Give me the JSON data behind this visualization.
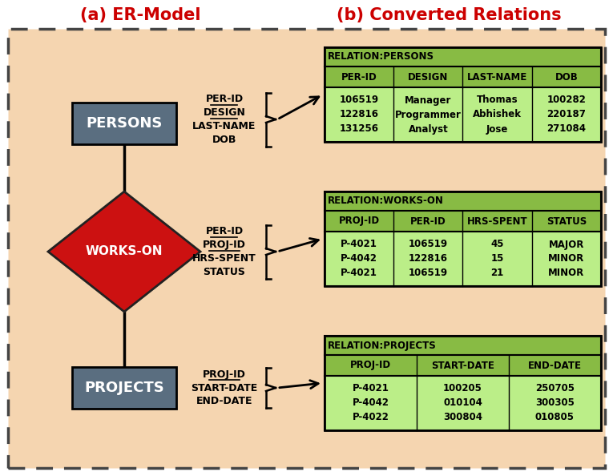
{
  "title_left": "(a) ER-Model",
  "title_right": "(b) Converted Relations",
  "title_color": "#cc0000",
  "bg_color": "#f5d5b0",
  "outer_bg": "#ffffff",
  "entity_color": "#5a6e80",
  "entity_text_color": "#ffffff",
  "diamond_color": "#cc1111",
  "diamond_text_color": "#ffffff",
  "table_header_bg": "#88bb44",
  "table_cell_bg": "#bbee88",
  "table_border_color": "#000000",
  "dashed_border_color": "#444444",
  "persons_label": "PERSONS",
  "workson_label": "WORKS-ON",
  "projects_label": "PROJECTS",
  "persons_attrs": [
    "PER-ID",
    "DESIGN",
    "LAST-NAME",
    "DOB"
  ],
  "persons_underlined": [
    0,
    1
  ],
  "workson_attrs": [
    "PER-ID",
    "PROJ-ID",
    "HRS-SPENT",
    "STATUS"
  ],
  "workson_underlined": [
    0,
    1
  ],
  "projects_attrs": [
    "PROJ-ID",
    "START-DATE",
    "END-DATE"
  ],
  "projects_underlined": [
    0
  ],
  "relation_persons": {
    "title": "RELATION:PERSONS",
    "headers": [
      "PER-ID",
      "DESIGN",
      "LAST-NAME",
      "DOB"
    ],
    "col_data": [
      "106519\n122816\n131256",
      "Manager\nProgrammer\nAnalyst",
      "Thomas\nAbhishek\nJose",
      "100282\n220187\n271084"
    ]
  },
  "relation_workson": {
    "title": "RELATION:WORKS-ON",
    "headers": [
      "PROJ-ID",
      "PER-ID",
      "HRS-SPENT",
      "STATUS"
    ],
    "col_data": [
      "P-4021\nP-4042\nP-4021",
      "106519\n122816\n106519",
      "45\n15\n21",
      "MAJOR\nMINOR\nMINOR"
    ]
  },
  "relation_projects": {
    "title": "RELATION:PROJECTS",
    "headers": [
      "PROJ-ID",
      "START-DATE",
      "END-DATE"
    ],
    "col_data": [
      "P-4021\nP-4042\nP-4022",
      "100205\n010104\n300804",
      "250705\n300305\n010805"
    ]
  }
}
